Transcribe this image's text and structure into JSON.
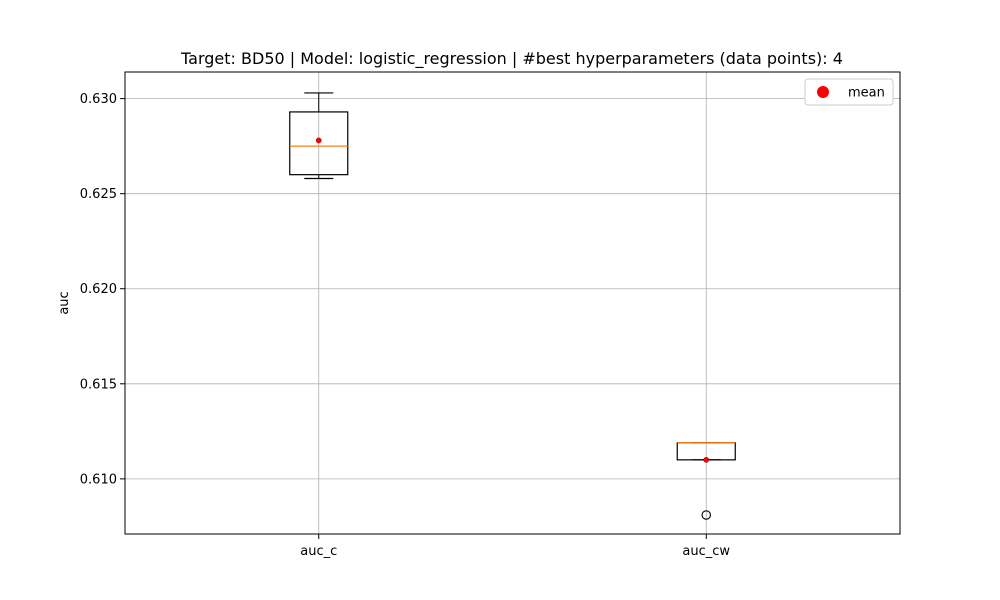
{
  "chart_data": {
    "type": "box",
    "title": "Target: BD50 | Model: logistic_regression | #best hyperparameters (data points): 4",
    "xlabel": "",
    "ylabel": "auc",
    "ylim": [
      0.6071,
      0.6314
    ],
    "yticks": [
      0.61,
      0.615,
      0.62,
      0.625,
      0.63
    ],
    "ytick_labels": [
      "0.610",
      "0.615",
      "0.620",
      "0.625",
      "0.630"
    ],
    "grid": true,
    "categories": [
      "auc_c",
      "auc_cw"
    ],
    "boxes": [
      {
        "label": "auc_c",
        "whisker_low": 0.6258,
        "q1": 0.626,
        "median": 0.6275,
        "q3": 0.6293,
        "whisker_high": 0.6303,
        "mean": 0.6278,
        "outliers": []
      },
      {
        "label": "auc_cw",
        "whisker_low": 0.611,
        "q1": 0.611,
        "median": 0.6119,
        "q3": 0.6119,
        "whisker_high": 0.6119,
        "mean": 0.611,
        "outliers": [
          0.6081
        ]
      }
    ],
    "legend": {
      "position": "top-right",
      "entries": [
        "mean"
      ]
    },
    "colors": {
      "box": "#000000",
      "median": "#ff7f0e",
      "mean": "#ff0000",
      "grid": "#b0b0b0"
    }
  }
}
